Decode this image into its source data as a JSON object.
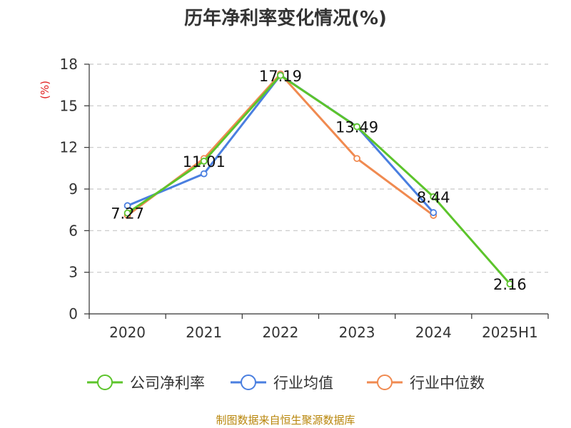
{
  "chart_data": {
    "type": "line",
    "title": "历年净利率变化情况(%)",
    "unit_label": "(%)",
    "categories": [
      "2020",
      "2021",
      "2022",
      "2023",
      "2024",
      "2025H1"
    ],
    "ylim": [
      0,
      18
    ],
    "yticks": [
      "0",
      "3",
      "6",
      "9",
      "12",
      "15",
      "18"
    ],
    "grid": true,
    "legend_position": "bottom",
    "series": [
      {
        "name": "公司净利率",
        "color": "#5cc42b",
        "values": [
          7.27,
          11.01,
          17.19,
          13.49,
          8.44,
          2.16
        ],
        "labels": [
          "7.27",
          "11.01",
          "17.19",
          "13.49",
          "8.44",
          "2.16"
        ]
      },
      {
        "name": "行业均值",
        "color": "#4a7fe0",
        "values": [
          7.8,
          10.1,
          17.2,
          13.5,
          7.3,
          null
        ]
      },
      {
        "name": "行业中位数",
        "color": "#f08a50",
        "values": [
          7.1,
          11.2,
          17.3,
          11.2,
          7.1,
          null
        ]
      }
    ]
  },
  "source": "制图数据来自恒生聚源数据库"
}
